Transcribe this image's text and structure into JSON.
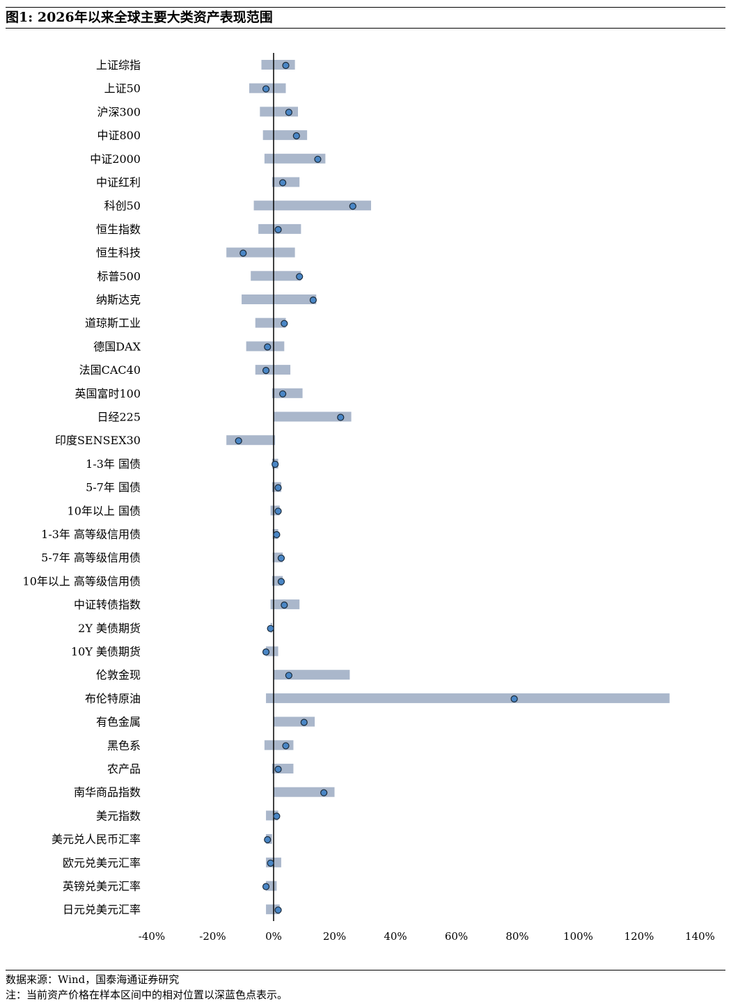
{
  "title": "图1:  2026年以来全球主要大类资产表现范围",
  "source": "数据来源：Wind，国泰海通证券研究",
  "note": "注：当前资产价格在样本区间中的相对位置以深蓝色点表示。",
  "colors": {
    "range_bar": "#aab7cb",
    "dot_fill": "#4a86c5",
    "dot_stroke": "#1a2a3a",
    "axis": "#000000"
  },
  "chart_data": {
    "type": "range_dot",
    "title": "",
    "xlabel": "",
    "ylabel": "",
    "xlim": [
      -40,
      140
    ],
    "x_ticks": [
      -40,
      -20,
      0,
      20,
      40,
      60,
      80,
      100,
      120,
      140
    ],
    "x_tick_labels": [
      "-40%",
      "-20%",
      "0%",
      "20%",
      "40%",
      "60%",
      "80%",
      "100%",
      "120%",
      "140%"
    ],
    "grid": false,
    "series": [
      {
        "name": "",
        "categories": [
          "上证综指",
          "上证50",
          "沪深300",
          "中证800",
          "中证2000",
          "中证红利",
          "科创50",
          "恒生指数",
          "恒生科技",
          "标普500",
          "纳斯达克",
          "道琼斯工业",
          "德国DAX",
          "法国CAC40",
          "英国富时100",
          "日经225",
          "印度SENSEX30",
          "1-3年 国债",
          "5-7年 国债",
          "10年以上 国债",
          "1-3年 高等级信用债",
          "5-7年 高等级信用债",
          "10年以上 高等级信用债",
          "中证转债指数",
          "2Y 美债期货",
          "10Y 美债期货",
          "伦敦金现",
          "布伦特原油",
          "有色金属",
          "黑色系",
          "农产品",
          "南华商品指数",
          "美元指数",
          "美元兑人民币汇率",
          "欧元兑美元汇率",
          "英镑兑美元汇率",
          "日元兑美元汇率"
        ]
      }
    ],
    "range_min": [
      -4,
      -8,
      -4.5,
      -3.5,
      -3,
      -0.5,
      -6.5,
      -5,
      -15.5,
      -7.5,
      -10.5,
      -6,
      -9,
      -6,
      -0.5,
      0,
      -15.5,
      -0.5,
      -0.5,
      -1,
      -0.3,
      -0.3,
      -0.5,
      -1,
      -1,
      -2.5,
      0,
      -2.5,
      0,
      -3,
      -0.5,
      0,
      -2.5,
      -2.5,
      -2.5,
      -2.5,
      -2.5
    ],
    "range_max": [
      7,
      4,
      8,
      11,
      17,
      8.5,
      32,
      9,
      7,
      9,
      14,
      4,
      3.5,
      5.5,
      9.5,
      25.5,
      0.5,
      1.5,
      2.5,
      2,
      1.5,
      3,
      3,
      8.5,
      -0.5,
      1.5,
      25,
      130,
      13.5,
      6.5,
      6.5,
      20,
      1.5,
      -0.5,
      2.5,
      1,
      2
    ],
    "current": [
      4,
      -2.5,
      5,
      7.5,
      14.5,
      3,
      26,
      1.5,
      -10,
      8.5,
      13,
      3.5,
      -2,
      -2.5,
      3,
      22,
      -11.5,
      0.5,
      1.5,
      1.5,
      1,
      2.5,
      2.5,
      3.5,
      -1,
      -2.5,
      5,
      79,
      10,
      4,
      1.5,
      16.5,
      1,
      -2,
      -1,
      -2.5,
      1.5
    ]
  }
}
